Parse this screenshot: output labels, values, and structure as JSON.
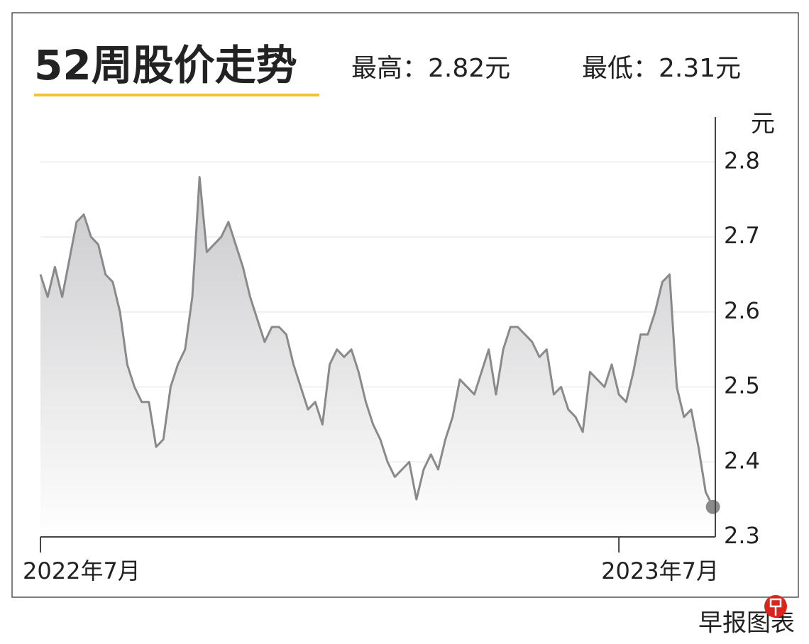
{
  "chart_data": {
    "type": "line",
    "title": "52周股价走势",
    "annotations": [
      "最高：2.82元",
      "最低：2.31元"
    ],
    "y_label": "元",
    "source": "早报图表",
    "xlim": [
      0,
      280
    ],
    "xticks": [
      {
        "value": 0,
        "label": "2022年7月"
      },
      {
        "value": 240,
        "label": "2023年7月"
      }
    ],
    "ylim": [
      2.3,
      2.86
    ],
    "yticks": [
      2.3,
      2.4,
      2.5,
      2.6,
      2.7,
      2.8
    ],
    "grid": true,
    "x": [
      0,
      3,
      6,
      9,
      12,
      15,
      18,
      21,
      24,
      27,
      30,
      33,
      36,
      39,
      42,
      45,
      48,
      51,
      54,
      57,
      60,
      63,
      66,
      69,
      72,
      75,
      78,
      81,
      84,
      87,
      90,
      93,
      96,
      99,
      102,
      105,
      108,
      111,
      114,
      117,
      120,
      123,
      126,
      129,
      132,
      135,
      138,
      141,
      144,
      147,
      150,
      153,
      156,
      159,
      162,
      165,
      168,
      171,
      174,
      177,
      180,
      183,
      186,
      189,
      192,
      195,
      198,
      201,
      204,
      207,
      210,
      213,
      216,
      219,
      222,
      225,
      228,
      231,
      234,
      237,
      240,
      243,
      246,
      249,
      252,
      255,
      258,
      261,
      264,
      267,
      270,
      273,
      276,
      279
    ],
    "series": [
      {
        "name": "股价",
        "color": "#8a8a8a",
        "values": [
          2.65,
          2.62,
          2.66,
          2.62,
          2.67,
          2.72,
          2.73,
          2.7,
          2.69,
          2.65,
          2.64,
          2.6,
          2.53,
          2.5,
          2.48,
          2.48,
          2.42,
          2.43,
          2.5,
          2.53,
          2.55,
          2.62,
          2.78,
          2.68,
          2.69,
          2.7,
          2.72,
          2.69,
          2.66,
          2.62,
          2.59,
          2.56,
          2.58,
          2.58,
          2.57,
          2.53,
          2.5,
          2.47,
          2.48,
          2.45,
          2.53,
          2.55,
          2.54,
          2.55,
          2.52,
          2.48,
          2.45,
          2.43,
          2.4,
          2.38,
          2.39,
          2.4,
          2.35,
          2.39,
          2.41,
          2.39,
          2.43,
          2.46,
          2.51,
          2.5,
          2.49,
          2.52,
          2.55,
          2.49,
          2.55,
          2.58,
          2.58,
          2.57,
          2.56,
          2.54,
          2.55,
          2.49,
          2.5,
          2.47,
          2.46,
          2.44,
          2.52,
          2.51,
          2.5,
          2.53,
          2.49,
          2.48,
          2.52,
          2.57,
          2.57,
          2.6,
          2.64,
          2.65,
          2.5,
          2.46,
          2.47,
          2.42,
          2.36,
          2.34
        ]
      }
    ]
  }
}
